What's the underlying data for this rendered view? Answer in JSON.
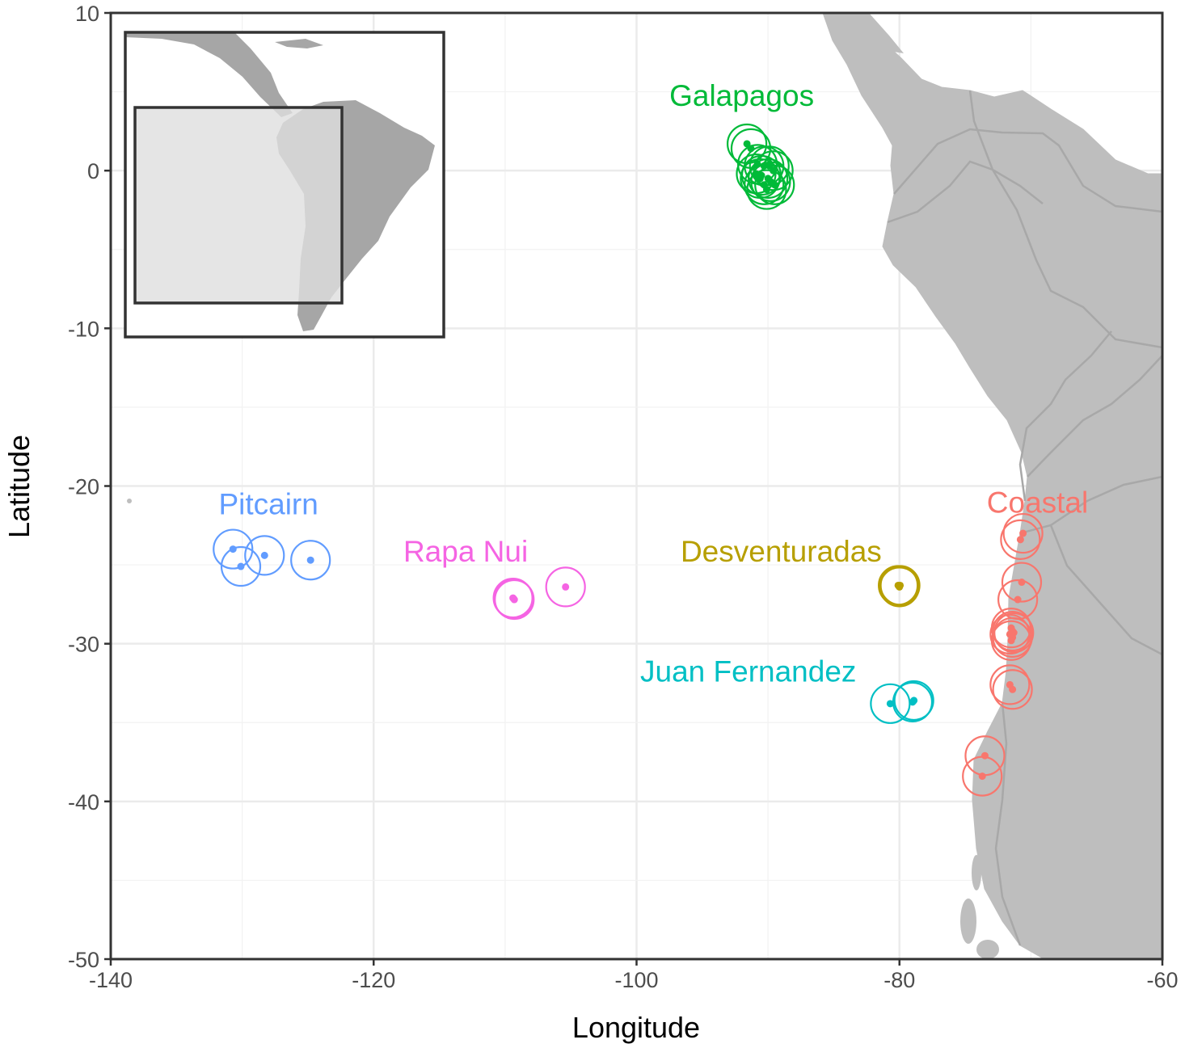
{
  "chart_data": {
    "type": "scatter",
    "xlabel": "Longitude",
    "ylabel": "Latitude",
    "xlim": [
      -140,
      -60
    ],
    "ylim": [
      -50,
      10
    ],
    "x_ticks": [
      -140,
      -120,
      -100,
      -80,
      -60
    ],
    "y_ticks": [
      10,
      0,
      -10,
      -20,
      -30,
      -40,
      -50
    ],
    "x_tick_labels": [
      "-140",
      "-120",
      "-100",
      "-80",
      "-60"
    ],
    "y_tick_labels": [
      "10",
      "0",
      "-10",
      "-20",
      "-30",
      "-40",
      "-50"
    ],
    "grid": true,
    "background_color": "#ffffff",
    "land_color": "#bebebe",
    "border_color": "#a8a8a8",
    "inset": {
      "extent": {
        "lon": [
          -140,
          -33
        ],
        "lat": [
          -58,
          35
        ]
      },
      "highlight_box": {
        "lon": [
          -137,
          -67
        ],
        "lat": [
          -53,
          7
        ]
      },
      "land_color": "#a6a6a6",
      "box_fill": "#dedede"
    },
    "series": [
      {
        "name": "Galapagos",
        "color": "#00ba38",
        "label_at": [
          -92,
          4.1
        ],
        "points": [
          [
            -91.6,
            1.7
          ],
          [
            -91.3,
            1.4
          ],
          [
            -90.8,
            0.4
          ],
          [
            -90.3,
            0.3
          ],
          [
            -89.9,
            0.3
          ],
          [
            -89.6,
            0.0
          ],
          [
            -90.9,
            -0.2
          ],
          [
            -90.5,
            -0.3
          ],
          [
            -90.0,
            -0.5
          ],
          [
            -89.8,
            -0.7
          ],
          [
            -90.3,
            -0.9
          ],
          [
            -90.6,
            -0.5
          ],
          [
            -89.5,
            -0.9
          ],
          [
            -90.1,
            -1.2
          ]
        ]
      },
      {
        "name": "Pitcairn",
        "color": "#619cff",
        "label_at": [
          -128,
          -21.8
        ],
        "points": [
          [
            -130.7,
            -24.0
          ],
          [
            -128.3,
            -24.4
          ],
          [
            -130.1,
            -25.1
          ],
          [
            -124.8,
            -24.7
          ]
        ]
      },
      {
        "name": "Rapa Nui",
        "color": "#f564e3",
        "label_at": [
          -113,
          -24.8
        ],
        "points": [
          [
            -109.4,
            -27.1
          ],
          [
            -109.3,
            -27.2
          ],
          [
            -109.35,
            -27.15
          ],
          [
            -105.4,
            -26.4
          ]
        ]
      },
      {
        "name": "Desventuradas",
        "color": "#b79f00",
        "label_at": [
          -89,
          -24.8
        ],
        "points": [
          [
            -80.1,
            -26.3
          ],
          [
            -80.05,
            -26.35
          ],
          [
            -79.95,
            -26.3
          ],
          [
            -80.0,
            -26.4
          ]
        ]
      },
      {
        "name": "Juan Fernandez",
        "color": "#00bfc4",
        "label_at": [
          -91.5,
          -32.4
        ],
        "points": [
          [
            -80.7,
            -33.8
          ],
          [
            -78.9,
            -33.6
          ],
          [
            -79.0,
            -33.7
          ]
        ]
      },
      {
        "name": "Coastal",
        "color": "#f8766d",
        "label_at": [
          -69.5,
          -21.7
        ],
        "points": [
          [
            -70.6,
            -23.0
          ],
          [
            -70.8,
            -23.4
          ],
          [
            -70.7,
            -26.1
          ],
          [
            -71.0,
            -27.2
          ],
          [
            -71.5,
            -29.0
          ],
          [
            -71.3,
            -29.3
          ],
          [
            -71.4,
            -29.6
          ],
          [
            -71.6,
            -29.4
          ],
          [
            -71.5,
            -29.8
          ],
          [
            -71.4,
            -29.2
          ],
          [
            -71.6,
            -32.6
          ],
          [
            -71.4,
            -32.9
          ],
          [
            -73.5,
            -37.1
          ],
          [
            -73.7,
            -38.4
          ]
        ]
      }
    ]
  }
}
